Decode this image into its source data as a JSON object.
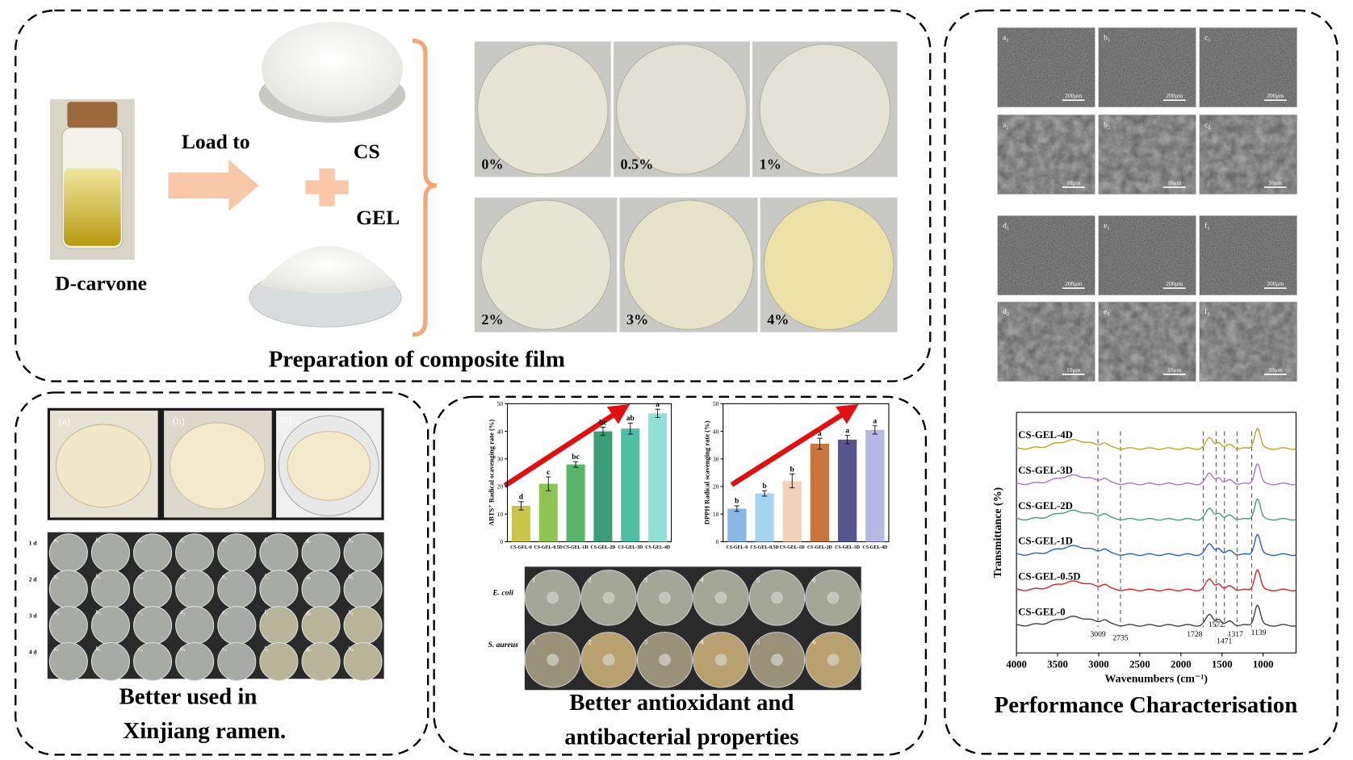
{
  "preparation": {
    "title": "Preparation of composite film",
    "carvone": "D-carvone",
    "load": "Load to",
    "cs": "CS",
    "gel": "GEL",
    "films": [
      "0%",
      "0.5%",
      "1%",
      "2%",
      "3%",
      "4%"
    ]
  },
  "ramen": {
    "title_lines": [
      "Better used in",
      "Xinjiang ramen."
    ],
    "photo_labels": [
      "(a)",
      "(b)",
      "(c)"
    ],
    "days": [
      "1 d",
      "2 d",
      "3 d",
      "4 d"
    ],
    "plates": [
      [
        "a₁",
        "b₁",
        "c₁",
        "d₁",
        "e₁",
        "f₁",
        "g₁",
        "h₁"
      ],
      [
        "a₂",
        "b₂",
        "c₂",
        "d₂",
        "e₂",
        "f₂",
        "g₂",
        "h₂"
      ],
      [
        "a₃",
        "b₃",
        "c₃",
        "d₃",
        "e₃",
        "f₃",
        "g₃",
        "h₃"
      ],
      [
        "a₄",
        "b₄",
        "c₄",
        "d₄",
        "e₄",
        "f₄",
        "g₄",
        "h₄"
      ]
    ]
  },
  "antioxidant": {
    "title_lines": [
      "Better antioxidant and",
      "antibacterial properties"
    ],
    "abts": {
      "type": "bar",
      "ylabel": "ABTS⁺ Radical scavenging rate (%)",
      "categories": [
        "CS-GEL-0",
        "CS-GEL-0.5D",
        "CS-GEL-1D",
        "CS-GEL-2D",
        "CS-GEL-3D",
        "CS-GEL-4D"
      ],
      "values": [
        13,
        21,
        28,
        40,
        41,
        46.5
      ],
      "errors": [
        1.5,
        2.5,
        1,
        1.5,
        2,
        1.5
      ],
      "letters": [
        "d",
        "c",
        "bc",
        "bc",
        "ab",
        "a"
      ],
      "colors": [
        "#c9c44a",
        "#8dc454",
        "#58b46a",
        "#3a9f78",
        "#4ebfa4",
        "#8fe0d6"
      ],
      "ylim": [
        0,
        50
      ],
      "yticks": [
        0,
        10,
        20,
        30,
        40,
        50
      ]
    },
    "dpph": {
      "type": "bar",
      "ylabel": "DPPH Radical scavenging rate (%)",
      "categories": [
        "CS-GEL-0",
        "CS-GEL-0.5D",
        "CS-GEL-1D",
        "CS-GEL-2D",
        "CS-GEL-3D",
        "CS-GEL-4D"
      ],
      "values": [
        12,
        17.5,
        22,
        35.5,
        37,
        40.5
      ],
      "errors": [
        1,
        1,
        2.5,
        2,
        1.5,
        1.5
      ],
      "letters": [
        "b",
        "b",
        "b",
        "a",
        "a",
        "a"
      ],
      "colors": [
        "#8ab8e4",
        "#a6d4ee",
        "#f2d2b8",
        "#c8753e",
        "#58548e",
        "#b8b8e6"
      ],
      "ylim": [
        0,
        50
      ],
      "yticks": [
        0,
        10,
        20,
        30,
        40,
        50
      ]
    },
    "bacteria": [
      "E. coli",
      "S. aureus"
    ],
    "plate_numbers": [
      "1",
      "2",
      "3",
      "4",
      "5",
      "6"
    ]
  },
  "performance": {
    "title": "Performance Characterisation",
    "sem_labels": [
      "a₁",
      "b₁",
      "c₁",
      "a₂",
      "b₂",
      "c₂",
      "d₁",
      "e₁",
      "f₁",
      "d₂",
      "e₂",
      "f₂"
    ],
    "scale_bars": [
      "200μm",
      "200μm",
      "200μm",
      "10μm",
      "10μm",
      "10μm",
      "200μm",
      "200μm",
      "200μm",
      "10μm",
      "10μm",
      "10μm"
    ],
    "ftir": {
      "type": "line",
      "xlabel": "Wavenumbers (cm⁻¹)",
      "ylabel": "Transmittance (%)",
      "xlim": [
        4000,
        600
      ],
      "xticks": [
        4000,
        3500,
        3000,
        2500,
        2000,
        1500,
        1000
      ],
      "peaks": [
        3009,
        2735,
        1728,
        1572,
        1471,
        1317,
        1139
      ],
      "series": [
        {
          "name": "CS-GEL-4D",
          "color": "#c8a020"
        },
        {
          "name": "CS-GEL-3D",
          "color": "#b070d0"
        },
        {
          "name": "CS-GEL-2D",
          "color": "#3aa860"
        },
        {
          "name": "CS-GEL-1D",
          "color": "#2060d0"
        },
        {
          "name": "CS-GEL-0.5D",
          "color": "#e02020"
        },
        {
          "name": "CS-GEL-0",
          "color": "#404040"
        }
      ]
    }
  }
}
